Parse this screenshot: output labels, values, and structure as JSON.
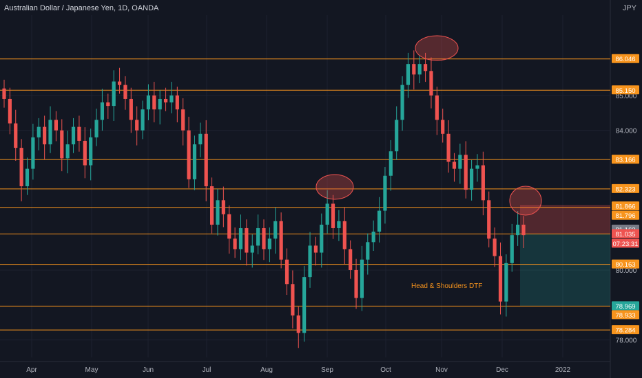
{
  "header": {
    "title": "Australian Dollar / Japanese Yen, 1D, OANDA",
    "currency": "JPY"
  },
  "colors": {
    "background": "#131722",
    "bull": "#26a69a",
    "bear": "#ef5350",
    "level_line": "#f7941d",
    "grid": "#1e2230"
  },
  "chart_data": {
    "type": "candlestick",
    "title": "Australian Dollar / Japanese Yen, 1D, OANDA",
    "x_ticks": [
      "Apr",
      "May",
      "Jun",
      "Jul",
      "Aug",
      "Sep",
      "Oct",
      "Nov",
      "Dec",
      "2022"
    ],
    "y_ticks": [
      "78.000",
      "80.000",
      "84.000",
      "85.000"
    ],
    "ylim": [
      77.5,
      87.3
    ],
    "horizontal_levels": [
      86.046,
      85.15,
      83.166,
      82.323,
      81.796,
      81.035,
      80.163,
      78.969,
      78.284
    ],
    "price_labels": [
      {
        "text": "86.046",
        "kind": "level"
      },
      {
        "text": "85.150",
        "kind": "level"
      },
      {
        "text": "83.166",
        "kind": "level"
      },
      {
        "text": "82.323",
        "kind": "level"
      },
      {
        "text": "81.866",
        "kind": "level"
      },
      {
        "text": "81.796",
        "kind": "level"
      },
      {
        "text": "81.163",
        "kind": "current"
      },
      {
        "text": "81.035",
        "kind": "bear"
      },
      {
        "text": "07:23:31",
        "kind": "bear"
      },
      {
        "text": "80.163",
        "kind": "level"
      },
      {
        "text": "78.969",
        "kind": "bull"
      },
      {
        "text": "78.933",
        "kind": "level"
      },
      {
        "text": "78.284",
        "kind": "level"
      }
    ],
    "annotation": "Head & Shoulders DTF",
    "closes": [
      84.9,
      84.2,
      83.5,
      82.4,
      82.9,
      83.8,
      84.1,
      83.6,
      84.3,
      84.0,
      83.2,
      83.6,
      84.1,
      83.7,
      83.0,
      83.8,
      84.3,
      84.8,
      84.7,
      85.4,
      85.3,
      84.9,
      84.3,
      84.0,
      84.6,
      85.0,
      84.6,
      84.9,
      84.8,
      85.0,
      84.6,
      84.0,
      82.6,
      83.6,
      83.9,
      82.4,
      81.3,
      82.0,
      81.6,
      80.9,
      80.6,
      81.2,
      80.5,
      80.7,
      81.2,
      80.6,
      80.9,
      81.4,
      80.3,
      79.6,
      78.7,
      78.2,
      79.8,
      80.7,
      80.5,
      81.3,
      81.9,
      81.2,
      81.4,
      80.6,
      80.0,
      79.2,
      80.3,
      80.8,
      81.1,
      81.7,
      82.7,
      83.4,
      84.3,
      85.3,
      85.9,
      85.6,
      85.9,
      85.7,
      85.0,
      84.3,
      83.9,
      83.1,
      82.9,
      83.3,
      82.3,
      82.9,
      83.0,
      82.0,
      80.9,
      80.4,
      79.1,
      80.2,
      81.0,
      81.3,
      81.0
    ]
  }
}
